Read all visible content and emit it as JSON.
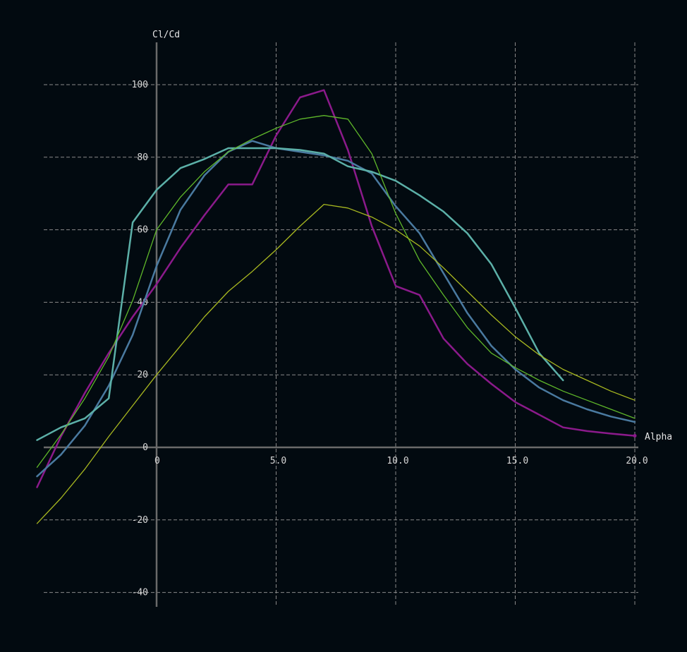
{
  "chart_data": {
    "type": "line",
    "xlabel": "Alpha",
    "ylabel": "Cl/Cd",
    "xlim": [
      -5,
      20
    ],
    "ylim": [
      -44,
      112
    ],
    "x_ticks": [
      0,
      5,
      10,
      15,
      20
    ],
    "x_tick_labels": [
      "0",
      "5.0",
      "10.0",
      "15.0",
      "20.0"
    ],
    "y_ticks": [
      -40,
      -20,
      0,
      20,
      40,
      60,
      80,
      100
    ],
    "y_tick_labels": [
      "-40",
      "-20",
      "0",
      "20",
      "40",
      "60",
      "80",
      "100"
    ],
    "grid": true,
    "colors": {
      "background": "#020a10",
      "axis": "#6a6a6a",
      "grid": "#8a8a8a",
      "text": "#d6d6d6"
    },
    "series": [
      {
        "color": "#8b1a8b",
        "width": 2.5,
        "x": [
          -5,
          -4,
          -3,
          -2,
          -1,
          0,
          1,
          2,
          3,
          4,
          5,
          6,
          7,
          8,
          9,
          10,
          11,
          12,
          13,
          14,
          15,
          16,
          17,
          18,
          19,
          20
        ],
        "y": [
          -11,
          3,
          15,
          26,
          36,
          45,
          55,
          64,
          72.5,
          72.5,
          86,
          96.5,
          98.5,
          82,
          61,
          44.5,
          42,
          30,
          23,
          17.5,
          12.5,
          9,
          5.5,
          4.5,
          3.8,
          3.2
        ]
      },
      {
        "color": "#4a7aa0",
        "width": 2.5,
        "x": [
          -5,
          -4,
          -3,
          -2,
          -1,
          0,
          1,
          2,
          3,
          4,
          5,
          6,
          7,
          8,
          9,
          10,
          11,
          12,
          13,
          14,
          15,
          16,
          17,
          18,
          19,
          20
        ],
        "y": [
          -8,
          -2,
          6,
          17,
          31,
          50,
          65.5,
          75,
          81.5,
          84.5,
          82.5,
          81.5,
          80.5,
          79,
          75.5,
          66.5,
          59,
          48,
          37,
          28,
          21.5,
          16.5,
          13,
          10.5,
          8.5,
          7
        ]
      },
      {
        "color": "#5cb0a8",
        "width": 2.5,
        "x": [
          -5,
          -4,
          -3,
          -2,
          -1,
          0,
          1,
          2,
          3,
          4,
          5,
          6,
          7,
          8,
          9,
          10,
          11,
          12,
          13,
          14,
          15,
          16,
          17
        ],
        "y": [
          2,
          5.5,
          8,
          13.5,
          62,
          71,
          77,
          79.5,
          82.5,
          82.5,
          82.5,
          82,
          81,
          77.5,
          76,
          73.5,
          69.5,
          65,
          59,
          50.5,
          38.5,
          26,
          18.5
        ]
      },
      {
        "color": "#5fb82a",
        "width": 1.3,
        "x": [
          -5,
          -4,
          -3,
          -2,
          -1,
          0,
          1,
          2,
          3,
          4,
          5,
          6,
          7,
          8,
          9,
          10,
          11,
          12,
          13,
          14,
          15,
          16,
          17,
          18,
          19,
          20
        ],
        "y": [
          -5.5,
          3.5,
          13.5,
          25,
          40.5,
          60,
          69,
          76,
          81.5,
          85,
          88,
          90.5,
          91.5,
          90.5,
          81,
          64.5,
          51.5,
          42,
          33,
          26,
          22,
          18.5,
          15.5,
          13,
          10.5,
          8
        ]
      },
      {
        "color": "#a8b820",
        "width": 1.3,
        "x": [
          -5,
          -4,
          -3,
          -2,
          -1,
          0,
          1,
          2,
          3,
          4,
          5,
          6,
          7,
          8,
          9,
          10,
          11,
          12,
          13,
          14,
          15,
          16,
          17,
          18,
          19,
          20
        ],
        "y": [
          -21,
          -14,
          -6,
          3,
          11.5,
          20,
          28,
          36,
          43,
          48.5,
          54.5,
          61,
          67,
          66,
          63.5,
          60,
          55.5,
          49.5,
          43,
          36.5,
          30.5,
          25.5,
          21.5,
          18.5,
          15.5,
          13
        ]
      }
    ]
  }
}
